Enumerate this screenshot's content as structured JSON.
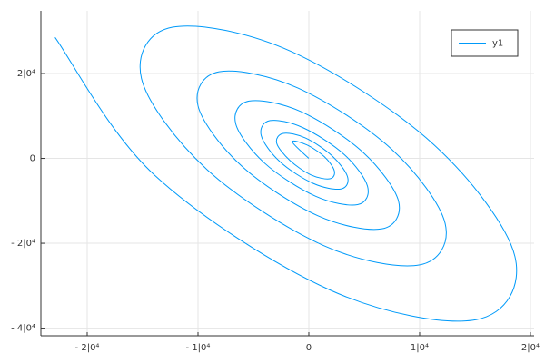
{
  "chart_data": {
    "type": "line",
    "x": [
      -22900,
      -13900,
      1900,
      15100,
      18600,
      11300,
      -1600,
      -12300,
      -15100,
      -9200,
      1300,
      10000,
      12300,
      7500,
      -1000,
      -8100,
      -10000,
      -6100,
      800,
      6600,
      8100,
      4900,
      -700,
      -5400,
      -6600,
      -4000,
      600,
      4400,
      5300,
      3200,
      -500,
      -3500,
      -4300,
      -2600,
      400,
      2900,
      3500,
      2100,
      -300,
      -2300,
      -2900,
      -1700,
      200,
      1900,
      2300,
      1400,
      -200,
      -1500,
      0
    ],
    "series": [
      {
        "name": "y1",
        "color": "#009af9",
        "values": [
          28500,
          -4000,
          -31000,
          -38000,
          -23100,
          3200,
          25200,
          30900,
          18800,
          -2600,
          -20500,
          -25100,
          -15300,
          2100,
          16600,
          20400,
          12400,
          -1700,
          -13500,
          -16600,
          -10100,
          1400,
          11000,
          13500,
          8200,
          -1100,
          -8900,
          -10900,
          -6600,
          900,
          7200,
          8900,
          5400,
          -800,
          -5900,
          -7200,
          -4400,
          600,
          4800,
          5900,
          3600,
          -500,
          -3900,
          -4800,
          -2900,
          400,
          3200,
          3900,
          0
        ]
      }
    ],
    "xlim": [
      -24180,
      20330
    ],
    "ylim": [
      -41800,
      34760
    ],
    "xticks": [
      {
        "value": -20000,
        "label": "- 2|0⁴"
      },
      {
        "value": -10000,
        "label": "- 1|0⁴"
      },
      0,
      {
        "value": 10000,
        "label": "1|0⁴"
      },
      {
        "value": 20000,
        "label": "2|0⁴"
      }
    ],
    "yticks": [
      {
        "value": -40000,
        "label": "- 4|0⁴"
      },
      {
        "value": -20000,
        "label": "- 2|0⁴"
      },
      0,
      {
        "value": 20000,
        "label": "2|0⁴"
      }
    ],
    "grid": true,
    "legend": "top-right"
  }
}
